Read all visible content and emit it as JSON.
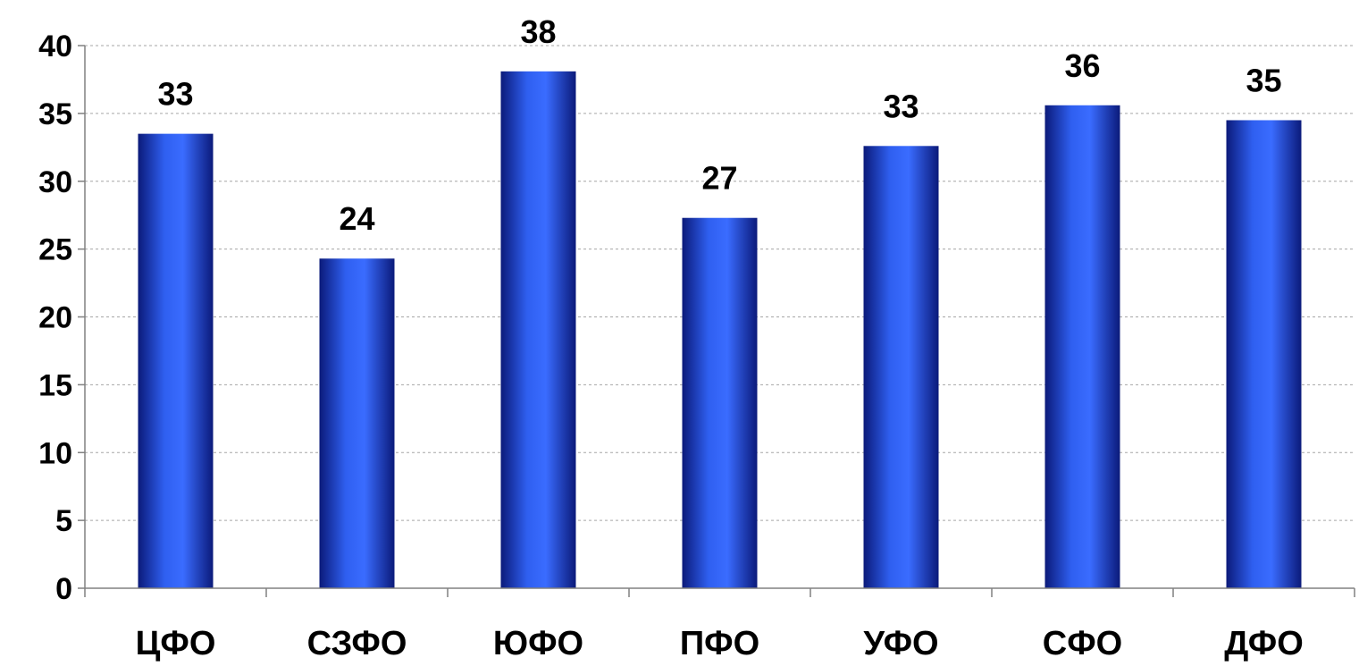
{
  "chart_data": {
    "type": "bar",
    "categories": [
      "ЦФО",
      "СЗФО",
      "ЮФО",
      "ПФО",
      "УФО",
      "СФО",
      "ДФО"
    ],
    "values": [
      33.5,
      24.3,
      38.1,
      27.3,
      32.6,
      35.6,
      34.5
    ],
    "data_labels": [
      "33",
      "24",
      "38",
      "27",
      "33",
      "36",
      "35"
    ],
    "title": "",
    "xlabel": "",
    "ylabel": "",
    "ylim": [
      0,
      40
    ],
    "yticks": [
      0,
      5,
      10,
      15,
      20,
      25,
      30,
      35,
      40
    ],
    "grid": true,
    "legend": "none",
    "colors": {
      "bar_dark": "#0b1a7a",
      "bar_light": "#3a6cff",
      "grid": "#a6a6a6",
      "axis": "#808080"
    }
  }
}
